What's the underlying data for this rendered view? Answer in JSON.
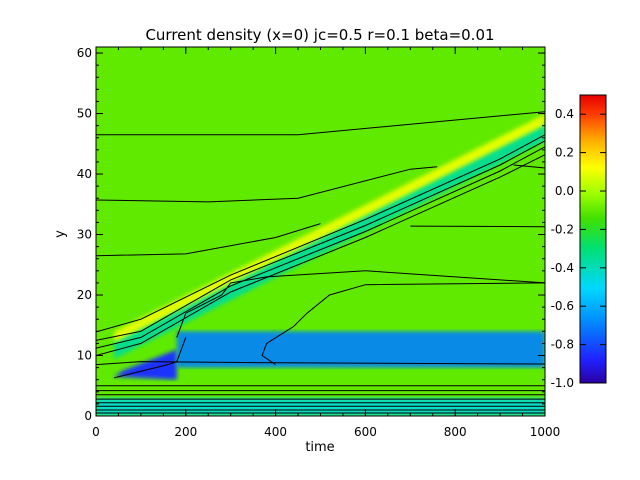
{
  "chart_data": {
    "type": "heatmap",
    "title": "Current density (x=0) jc=0.5 r=0.1 beta=0.01",
    "xlabel": "time",
    "ylabel": "y",
    "xlim": [
      0,
      1000
    ],
    "ylim": [
      0,
      61
    ],
    "xticks": [
      0,
      200,
      400,
      600,
      800,
      1000
    ],
    "yticks": [
      0,
      10,
      20,
      30,
      40,
      50,
      60
    ],
    "colorbar": {
      "min": -1.0,
      "max": 0.5,
      "ticks": [
        0.4,
        0.2,
        0.0,
        -0.2,
        -0.4,
        -0.6,
        -0.8,
        -1.0
      ],
      "placement": "right"
    },
    "features": [
      {
        "kind": "background",
        "value": -0.1
      },
      {
        "kind": "diagonal-band",
        "value": -0.35,
        "from": {
          "x": 40,
          "y": 11
        },
        "to": {
          "x": 1000,
          "y": 47
        }
      },
      {
        "kind": "diagonal-edge",
        "value": 0.1,
        "from": {
          "x": 40,
          "y": 13
        },
        "to": {
          "x": 1000,
          "y": 49
        }
      },
      {
        "kind": "blob",
        "value": -0.85,
        "x_range": [
          40,
          180
        ],
        "y_range": [
          6,
          11
        ]
      },
      {
        "kind": "band",
        "value": -0.7,
        "x_range": [
          180,
          1000
        ],
        "y_range": [
          8,
          14
        ]
      },
      {
        "kind": "near-axis-band",
        "value": -0.45,
        "x_range": [
          0,
          1000
        ],
        "y_range": [
          0,
          3
        ]
      }
    ],
    "contours": [
      [
        [
          0,
          46.5
        ],
        [
          450,
          46.5
        ],
        [
          1000,
          50.3
        ]
      ],
      [
        [
          0,
          35.7
        ],
        [
          250,
          35.4
        ],
        [
          450,
          36.0
        ],
        [
          700,
          40.8
        ],
        [
          760,
          41.2
        ]
      ],
      [
        [
          0,
          26.5
        ],
        [
          200,
          26.8
        ],
        [
          400,
          29.5
        ],
        [
          500,
          31.8
        ]
      ],
      [
        [
          930,
          41.5
        ],
        [
          1000,
          41.0
        ]
      ],
      [
        [
          700,
          31.4
        ],
        [
          1000,
          31.3
        ]
      ],
      [
        [
          600,
          24.0
        ],
        [
          1000,
          22.0
        ]
      ],
      [
        [
          0,
          13.9
        ],
        [
          100,
          16
        ],
        [
          300,
          23.3
        ],
        [
          600,
          32.5
        ],
        [
          900,
          42.5
        ],
        [
          1000,
          46.5
        ]
      ],
      [
        [
          0,
          12.5
        ],
        [
          100,
          14
        ],
        [
          300,
          22.5
        ],
        [
          600,
          31.5
        ],
        [
          900,
          41.5
        ],
        [
          1000,
          45.5
        ]
      ],
      [
        [
          0,
          11.2
        ],
        [
          100,
          13
        ],
        [
          300,
          21.5
        ],
        [
          600,
          30.5
        ],
        [
          900,
          40.5
        ],
        [
          1000,
          44.5
        ]
      ],
      [
        [
          0,
          10.0
        ],
        [
          100,
          12
        ],
        [
          300,
          20.5
        ],
        [
          600,
          29.5
        ],
        [
          900,
          39.5
        ],
        [
          1000,
          43.2
        ]
      ],
      [
        [
          0,
          8.5
        ],
        [
          100,
          9
        ],
        [
          400,
          8.8
        ],
        [
          1000,
          8.6
        ]
      ],
      [
        [
          0,
          5.0
        ],
        [
          1000,
          5.0
        ]
      ],
      [
        [
          0,
          4.2
        ],
        [
          1000,
          4.2
        ]
      ],
      [
        [
          0,
          3.5
        ],
        [
          1000,
          3.5
        ]
      ],
      [
        [
          0,
          2.8
        ],
        [
          1000,
          2.8
        ]
      ],
      [
        [
          0,
          2.2
        ],
        [
          1000,
          2.2
        ]
      ],
      [
        [
          0,
          1.6
        ],
        [
          1000,
          1.6
        ]
      ],
      [
        [
          0,
          1.0
        ],
        [
          1000,
          1.0
        ]
      ],
      [
        [
          0,
          0.5
        ],
        [
          1000,
          0.5
        ]
      ],
      [
        [
          180,
          13
        ],
        [
          200,
          17
        ],
        [
          280,
          20
        ],
        [
          300,
          22
        ],
        [
          380,
          23
        ],
        [
          600,
          24
        ]
      ],
      [
        [
          40,
          6.3
        ],
        [
          160,
          8.5
        ],
        [
          180,
          9
        ],
        [
          200,
          13
        ]
      ],
      [
        [
          380,
          12
        ],
        [
          440,
          14.8
        ],
        [
          470,
          17
        ],
        [
          520,
          20
        ],
        [
          600,
          21.7
        ],
        [
          1000,
          22
        ]
      ],
      [
        [
          380,
          12
        ],
        [
          370,
          10
        ],
        [
          400,
          8.5
        ]
      ]
    ],
    "colors": {
      "background": "#ffffff",
      "axes": "#000000",
      "contour": "#000000"
    }
  }
}
